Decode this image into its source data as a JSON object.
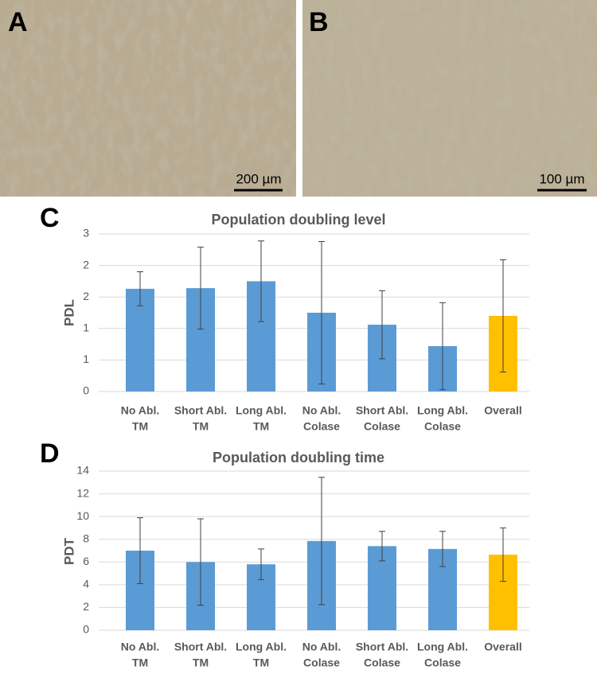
{
  "panels": [
    {
      "label": "A",
      "scale": "200 µm"
    },
    {
      "label": "B",
      "scale": "100 µm"
    },
    {
      "label": "C"
    },
    {
      "label": "D"
    }
  ],
  "chart_data": [
    {
      "type": "bar",
      "title": "Population doubling level",
      "y_label": "PDL",
      "categories": [
        [
          "No Abl.",
          "TM"
        ],
        [
          "Short Abl.",
          "TM"
        ],
        [
          "Long Abl.",
          "TM"
        ],
        [
          "No Abl.",
          "Colase"
        ],
        [
          "Short Abl.",
          "Colase"
        ],
        [
          "Long Abl.",
          "Colase"
        ],
        [
          "Overall"
        ]
      ],
      "values": [
        1.63,
        1.64,
        1.75,
        1.25,
        1.06,
        0.72,
        1.2
      ],
      "errors": [
        0.27,
        0.65,
        0.64,
        1.13,
        0.54,
        0.69,
        0.89
      ],
      "colors": [
        "#5b9bd5",
        "#5b9bd5",
        "#5b9bd5",
        "#5b9bd5",
        "#5b9bd5",
        "#5b9bd5",
        "#ffc000"
      ],
      "ylim": [
        0,
        2.5
      ],
      "yticks": [
        0,
        {
          "value": 0.5,
          "label": "1"
        },
        1,
        {
          "value": 1.5,
          "label": "2"
        },
        2,
        {
          "value": 2.5,
          "label": "3"
        }
      ],
      "grid": true
    },
    {
      "type": "bar",
      "title": "Population doubling time",
      "y_label": "PDT",
      "categories": [
        [
          "No Abl.",
          "TM"
        ],
        [
          "Short Abl.",
          "TM"
        ],
        [
          "Long Abl.",
          "TM"
        ],
        [
          "No Abl.",
          "Colase"
        ],
        [
          "Short Abl.",
          "Colase"
        ],
        [
          "Long Abl.",
          "Colase"
        ],
        [
          "Overall"
        ]
      ],
      "values": [
        7.0,
        6.0,
        5.8,
        7.85,
        7.4,
        7.15,
        6.65
      ],
      "errors": [
        2.9,
        3.8,
        1.35,
        5.6,
        1.3,
        1.55,
        2.35
      ],
      "colors": [
        "#5b9bd5",
        "#5b9bd5",
        "#5b9bd5",
        "#5b9bd5",
        "#5b9bd5",
        "#5b9bd5",
        "#ffc000"
      ],
      "ylim": [
        0,
        14
      ],
      "yticks": [
        0,
        2,
        4,
        6,
        8,
        10,
        12,
        14
      ],
      "grid": true
    }
  ]
}
